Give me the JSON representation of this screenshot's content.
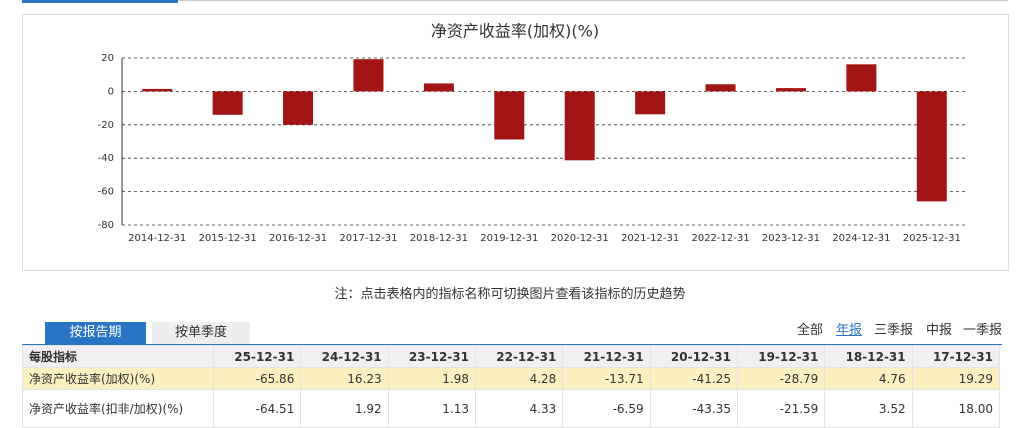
{
  "chart_data": {
    "type": "bar",
    "title": "净资产收益率(加权)(%)",
    "categories": [
      "2014-12-31",
      "2015-12-31",
      "2016-12-31",
      "2017-12-31",
      "2018-12-31",
      "2019-12-31",
      "2020-12-31",
      "2021-12-31",
      "2022-12-31",
      "2023-12-31",
      "2024-12-31",
      "2025-12-31"
    ],
    "values": [
      1.5,
      -14,
      -20,
      19.29,
      4.76,
      -28.79,
      -41.25,
      -13.71,
      4.28,
      1.98,
      16.23,
      -65.86
    ],
    "color": "#a31414",
    "ylim": [
      -80,
      20
    ],
    "yticks": [
      20,
      0,
      -20,
      -40,
      -60,
      -80
    ],
    "grid": true
  },
  "note": "注：点击表格内的指标名称可切换图片查看该指标的历史趋势",
  "tabs": [
    "按报告期",
    "按单季度"
  ],
  "filters": [
    "全部",
    "年报",
    "三季报",
    "中报",
    "一季报"
  ],
  "table": {
    "header": [
      "每股指标",
      "25-12-31",
      "24-12-31",
      "23-12-31",
      "22-12-31",
      "21-12-31",
      "20-12-31",
      "19-12-31",
      "18-12-31",
      "17-12-31"
    ],
    "rows": [
      [
        "净资产收益率(加权)(%)",
        "-65.86",
        "16.23",
        "1.98",
        "4.28",
        "-13.71",
        "-41.25",
        "-28.79",
        "4.76",
        "19.29"
      ],
      [
        "净资产收益率(扣非/加权)(%)",
        "-64.51",
        "1.92",
        "1.13",
        "4.33",
        "-6.59",
        "-43.35",
        "-21.59",
        "3.52",
        "18.00"
      ]
    ]
  }
}
